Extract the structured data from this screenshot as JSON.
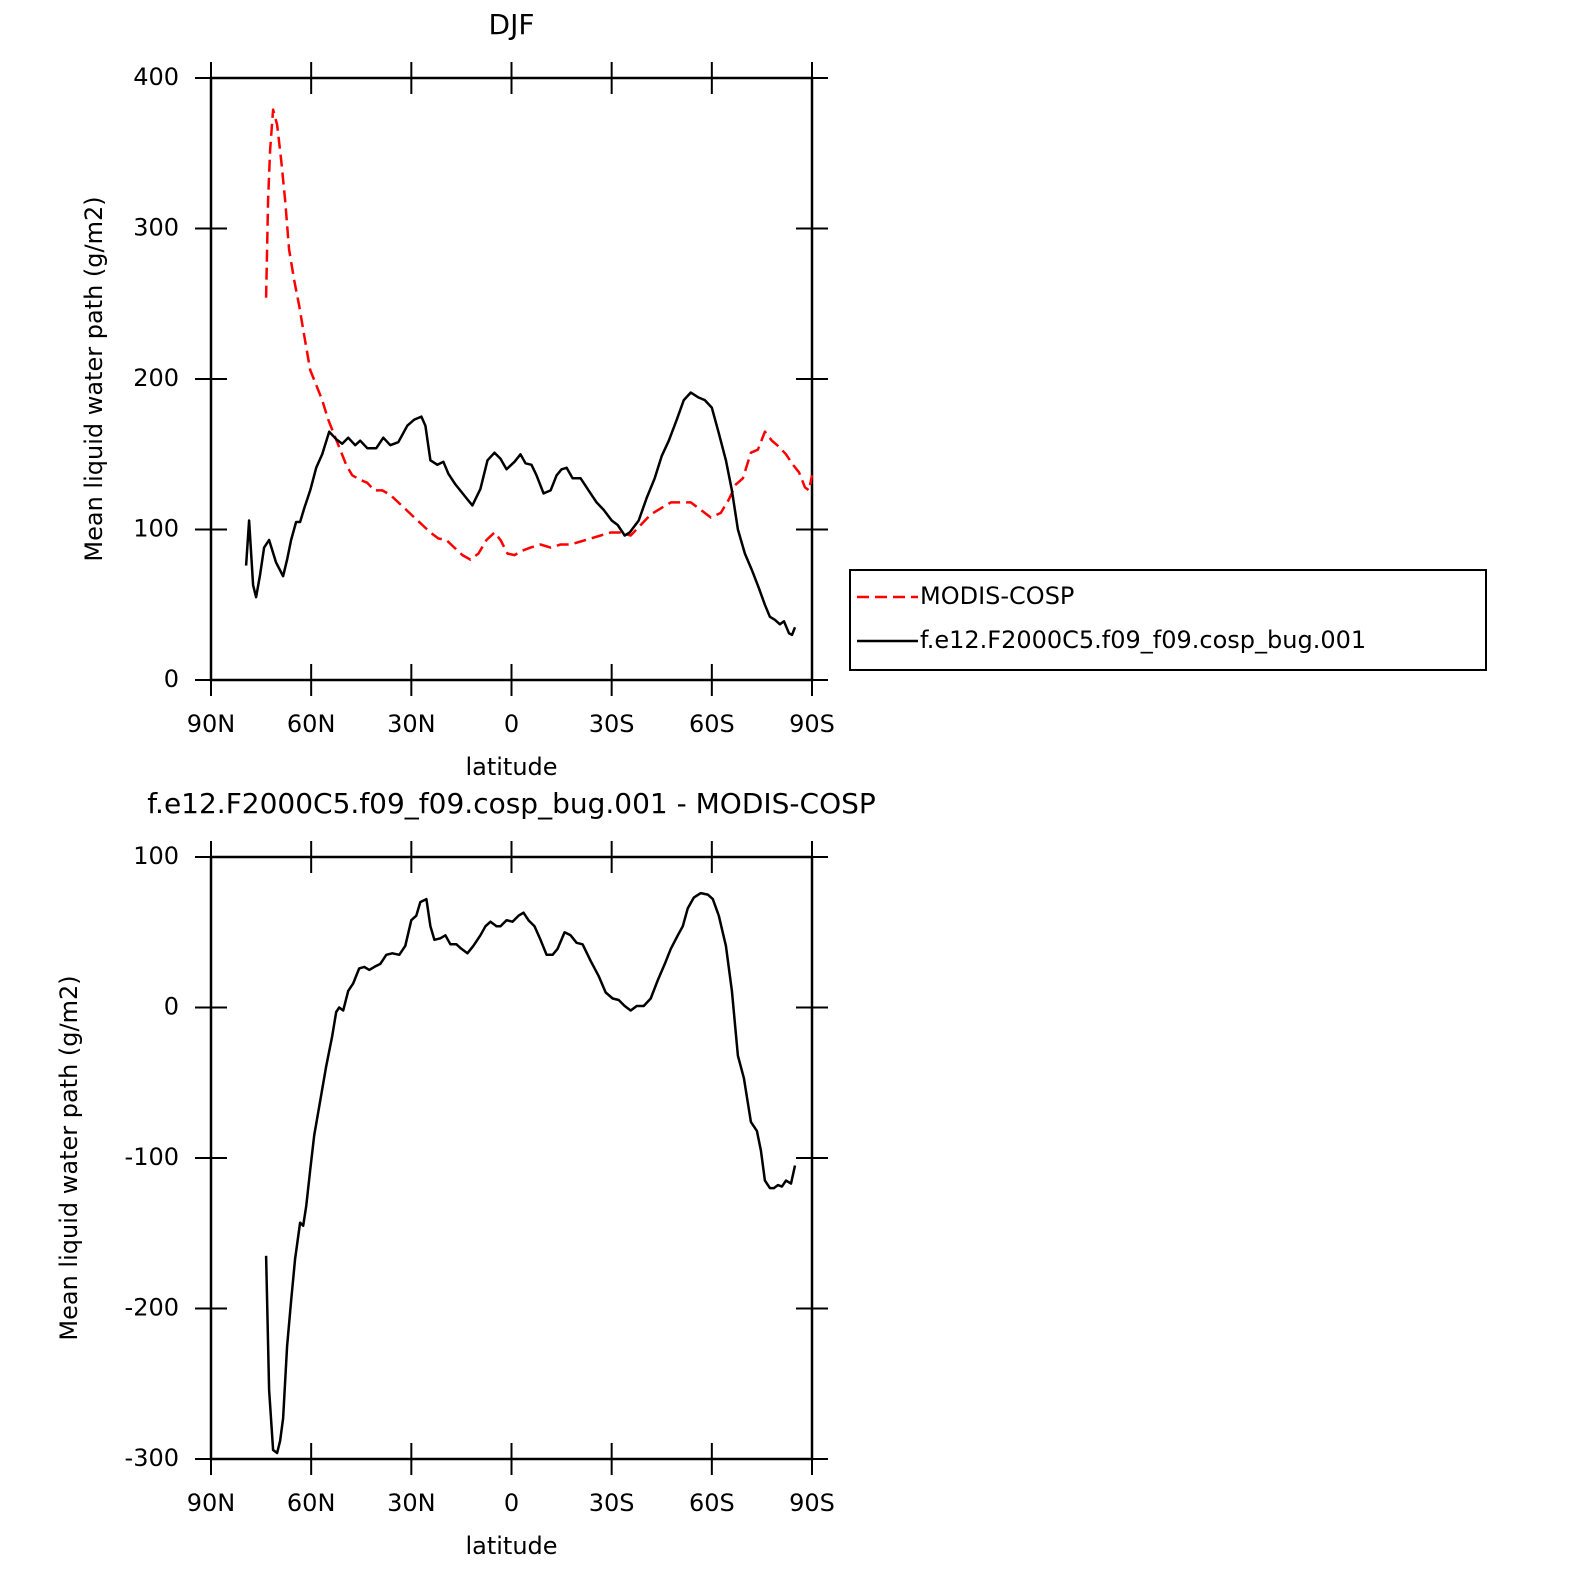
{
  "chart_data": [
    {
      "type": "line",
      "title": "DJF",
      "xlabel": "latitude",
      "ylabel": "Mean liquid water path (g/m2)",
      "xlim": [
        90,
        -90
      ],
      "xticks": [
        {
          "value": 90,
          "label": "90N"
        },
        {
          "value": 60,
          "label": "60N"
        },
        {
          "value": 30,
          "label": "30N"
        },
        0,
        {
          "value": -30,
          "label": "30S"
        },
        {
          "value": -60,
          "label": "60S"
        },
        {
          "value": -90,
          "label": "90S"
        }
      ],
      "ylim": [
        0,
        400
      ],
      "yticks": [
        0,
        100,
        200,
        300,
        400
      ],
      "legend": "right",
      "series": [
        {
          "name": "MODIS-COSP",
          "color": "#ff0000",
          "dashed": true,
          "x": [
            73.5,
            72.9,
            72.3,
            71.4,
            70.2,
            69,
            67.8,
            66.6,
            65.1,
            63.6,
            62.1,
            60.3,
            58.5,
            56.7,
            54.9,
            53.1,
            51.3,
            49.5,
            47.7,
            45.3,
            43.2,
            41.1,
            38.7,
            36.3,
            33.9,
            31.5,
            29.1,
            26.7,
            24.3,
            21.9,
            19.5,
            17.1,
            14.7,
            12.3,
            9.9,
            7.5,
            5.1,
            3.3,
            1.2,
            -0.9,
            -3.3,
            -5.7,
            -8.7,
            -11.7,
            -14.7,
            -17.7,
            -20.7,
            -23.7,
            -26.7,
            -29.7,
            -32.7,
            -35.7,
            -38.7,
            -41.7,
            -44.7,
            -47.7,
            -50.7,
            -53.7,
            -56.7,
            -59.7,
            -62.7,
            -65.1,
            -67.2,
            -69.3,
            -71.7,
            -73.8,
            -75.9,
            -78,
            -80.1,
            -82.2,
            -84.3,
            -86.1,
            -87.9,
            -89.1,
            -90
          ],
          "values": [
            254,
            319,
            352,
            379,
            369,
            346,
            319,
            286,
            266,
            249,
            229,
            206,
            196,
            186,
            173,
            163,
            153,
            143,
            136,
            133,
            131,
            126,
            126,
            123,
            118,
            113,
            108,
            103,
            98,
            94,
            93,
            88,
            83,
            80,
            84,
            93,
            98,
            93,
            84,
            83,
            86,
            88,
            90,
            88,
            90,
            90,
            92,
            94,
            96,
            98,
            98,
            96,
            103,
            110,
            114,
            118,
            118,
            118,
            113,
            108,
            111,
            120,
            130,
            134,
            151,
            153,
            165,
            159,
            155,
            150,
            143,
            138,
            128,
            126,
            136
          ]
        },
        {
          "name": "f.e12.F2000C5.f09_f09.cosp_bug.001",
          "color": "#000000",
          "dashed": false,
          "x": [
            79.5,
            78.6,
            77.4,
            76.5,
            75.3,
            74.1,
            72.6,
            70.5,
            68.4,
            67.2,
            66,
            64.5,
            63.3,
            62.1,
            60.3,
            58.5,
            56.7,
            54.6,
            52.5,
            50.7,
            48.9,
            46.8,
            45.3,
            43.2,
            40.5,
            38.4,
            36.3,
            33.9,
            31.2,
            29.1,
            27,
            25.8,
            24.3,
            22.2,
            20.4,
            18.9,
            16.8,
            15,
            13.2,
            11.7,
            9.3,
            7.2,
            5.1,
            3.3,
            1.5,
            -0.9,
            -2.7,
            -4.2,
            -6,
            -7.5,
            -9.6,
            -11.7,
            -13.5,
            -15,
            -16.5,
            -18.3,
            -20.7,
            -23.1,
            -25.5,
            -27.6,
            -30,
            -31.8,
            -33.9,
            -35.4,
            -38.1,
            -40.5,
            -42.9,
            -45,
            -47.1,
            -49.5,
            -51.6,
            -53.7,
            -55.8,
            -57.9,
            -60,
            -62.1,
            -64.2,
            -66,
            -67.8,
            -69.9,
            -72,
            -74.1,
            -75.9,
            -77.4,
            -78.9,
            -80.4,
            -81.6,
            -83.1,
            -84,
            -84.9
          ],
          "values": [
            76,
            106,
            63,
            55,
            70,
            88,
            93,
            78,
            69,
            80,
            93,
            105,
            105,
            114,
            126,
            141,
            150,
            165,
            160,
            157,
            161,
            156,
            159,
            154,
            154,
            161,
            156,
            158,
            169,
            173,
            175,
            169,
            146,
            143,
            145,
            137,
            130,
            125,
            120,
            116,
            127,
            146,
            151,
            147,
            140,
            145,
            150,
            144,
            143,
            136,
            124,
            126,
            136,
            140,
            141,
            134,
            134,
            126,
            118,
            113,
            106,
            103,
            96,
            98,
            106,
            121,
            134,
            149,
            159,
            173,
            186,
            191,
            188,
            186,
            181,
            164,
            146,
            126,
            100,
            84,
            73,
            61,
            50,
            42,
            40,
            37,
            39,
            31,
            30,
            35
          ]
        }
      ]
    },
    {
      "type": "line",
      "title": "f.e12.F2000C5.f09_f09.cosp_bug.001 - MODIS-COSP",
      "xlabel": "latitude",
      "ylabel": "Mean liquid water path (g/m2)",
      "xlim": [
        90,
        -90
      ],
      "xticks": [
        {
          "value": 90,
          "label": "90N"
        },
        {
          "value": 60,
          "label": "60N"
        },
        {
          "value": 30,
          "label": "30N"
        },
        0,
        {
          "value": -30,
          "label": "30S"
        },
        {
          "value": -60,
          "label": "60S"
        },
        {
          "value": -90,
          "label": "90S"
        }
      ],
      "ylim": [
        -300,
        100
      ],
      "yticks": [
        -300,
        -200,
        -100,
        0,
        100
      ],
      "color": "#000000",
      "x": [
        73.5,
        72.6,
        71.4,
        70.2,
        69.3,
        68.4,
        67.2,
        66,
        64.8,
        63.3,
        62.4,
        61.5,
        60.3,
        59.1,
        57.3,
        55.5,
        53.7,
        52.5,
        51.6,
        50.4,
        48.9,
        47.4,
        45.6,
        44.1,
        42.6,
        41.1,
        39.3,
        37.5,
        35.7,
        33.6,
        31.8,
        30,
        28.5,
        27.3,
        25.5,
        24.3,
        23.1,
        21.3,
        19.8,
        18.3,
        16.5,
        15,
        13.2,
        11.4,
        9.3,
        7.8,
        6.3,
        4.5,
        3.3,
        1.5,
        -0.3,
        -2.1,
        -3.6,
        -5.1,
        -6.9,
        -8.7,
        -10.5,
        -12.3,
        -13.8,
        -15.9,
        -17.7,
        -19.5,
        -21.3,
        -23.7,
        -26.1,
        -28.2,
        -30.3,
        -32.1,
        -33.9,
        -35.7,
        -37.5,
        -39.6,
        -41.7,
        -43.8,
        -45.9,
        -47.7,
        -49.8,
        -51.3,
        -52.8,
        -54.6,
        -56.7,
        -58.8,
        -60.3,
        -62.1,
        -64.2,
        -66,
        -67.8,
        -69.6,
        -71.7,
        -73.5,
        -74.7,
        -75.9,
        -77.4,
        -78.6,
        -79.8,
        -81,
        -82.2,
        -83.7,
        -84.9
      ],
      "values": [
        -165,
        -254,
        -294,
        -296,
        -288,
        -273,
        -225,
        -195,
        -167,
        -143,
        -145,
        -132,
        -108,
        -85,
        -62,
        -39,
        -19,
        -3,
        0,
        -2,
        11,
        16,
        26,
        27,
        25,
        27,
        29,
        35,
        36,
        35,
        41,
        58,
        61,
        70,
        72,
        54,
        45,
        46,
        48,
        42,
        42,
        39,
        36,
        41,
        48,
        54,
        57,
        54,
        54,
        58,
        57,
        61,
        63,
        58,
        54,
        45,
        35,
        35,
        39,
        50,
        48,
        43,
        42,
        31,
        21,
        10,
        6,
        5,
        1,
        -2,
        1,
        1,
        6,
        18,
        29,
        39,
        48,
        54,
        66,
        73,
        76,
        75,
        72,
        61,
        41,
        11,
        -32,
        -47,
        -76,
        -82,
        -95,
        -115,
        -120,
        -120,
        -118,
        -119,
        -115,
        -117,
        -105
      ]
    }
  ]
}
